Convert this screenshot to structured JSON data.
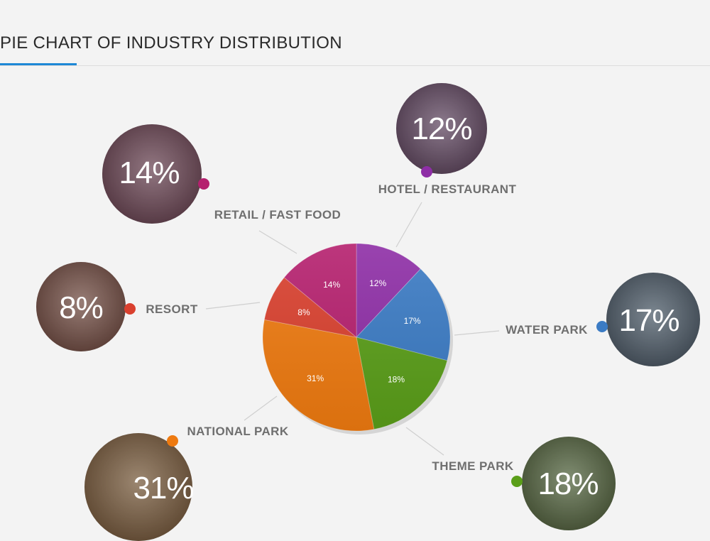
{
  "page_title": "PIE CHART OF INDUSTRY DISTRIBUTION",
  "colors": {
    "accent": "#1e88d6",
    "background": "#f3f3f3"
  },
  "chart_data": {
    "type": "pie",
    "title": "PIE CHART OF INDUSTRY DISTRIBUTION",
    "slices": [
      {
        "label": "HOTEL / RESTAURANT",
        "value": 12,
        "display": "12%",
        "color": "#8e2ea6"
      },
      {
        "label": "WATER PARK",
        "value": 17,
        "display": "17%",
        "color": "#3b7bc4"
      },
      {
        "label": "THEME PARK",
        "value": 18,
        "display": "18%",
        "color": "#5a9e19"
      },
      {
        "label": "NATIONAL PARK",
        "value": 31,
        "display": "31%",
        "color": "#ee7a10"
      },
      {
        "label": "RESORT",
        "value": 8,
        "display": "8%",
        "color": "#d9402e"
      },
      {
        "label": "RETAIL / FAST FOOD",
        "value": 14,
        "display": "14%",
        "color": "#b5206e"
      }
    ]
  }
}
